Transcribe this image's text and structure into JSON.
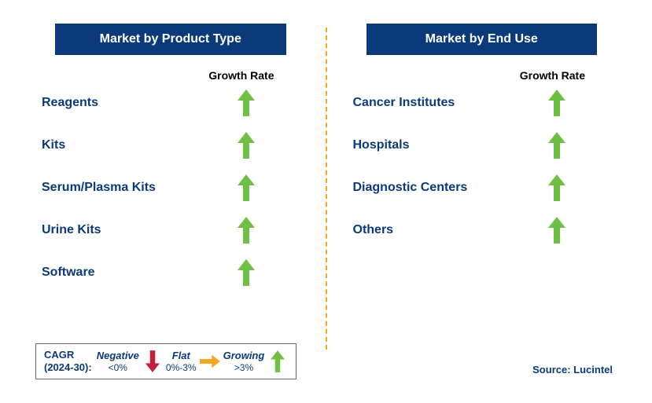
{
  "colors": {
    "header_bg": "#0a3a7a",
    "header_text": "#ffffff",
    "label_text": "#0a3a7a",
    "growth_arrow": "#6fbf44",
    "negative_arrow": "#c41e3a",
    "flat_arrow": "#f5a623",
    "divider": "#f5a623",
    "growth_label": "#000000"
  },
  "left": {
    "title": "Market by Product Type",
    "growth_label": "Growth Rate",
    "rows": [
      {
        "label": "Reagents",
        "growth": "growing"
      },
      {
        "label": "Kits",
        "growth": "growing"
      },
      {
        "label": "Serum/Plasma Kits",
        "growth": "growing"
      },
      {
        "label": "Urine Kits",
        "growth": "growing"
      },
      {
        "label": "Software",
        "growth": "growing"
      }
    ]
  },
  "right": {
    "title": "Market by End Use",
    "growth_label": "Growth Rate",
    "rows": [
      {
        "label": "Cancer Institutes",
        "growth": "growing"
      },
      {
        "label": "Hospitals",
        "growth": "growing"
      },
      {
        "label": "Diagnostic Centers",
        "growth": "growing"
      },
      {
        "label": "Others",
        "growth": "growing"
      }
    ]
  },
  "legend": {
    "cagr_line1": "CAGR",
    "cagr_line2": "(2024-30):",
    "items": [
      {
        "name": "Negative",
        "range": "<0%",
        "icon": "down-red"
      },
      {
        "name": "Flat",
        "range": "0%-3%",
        "icon": "right-yellow"
      },
      {
        "name": "Growing",
        "range": ">3%",
        "icon": "up-green"
      }
    ]
  },
  "source": "Source: Lucintel"
}
